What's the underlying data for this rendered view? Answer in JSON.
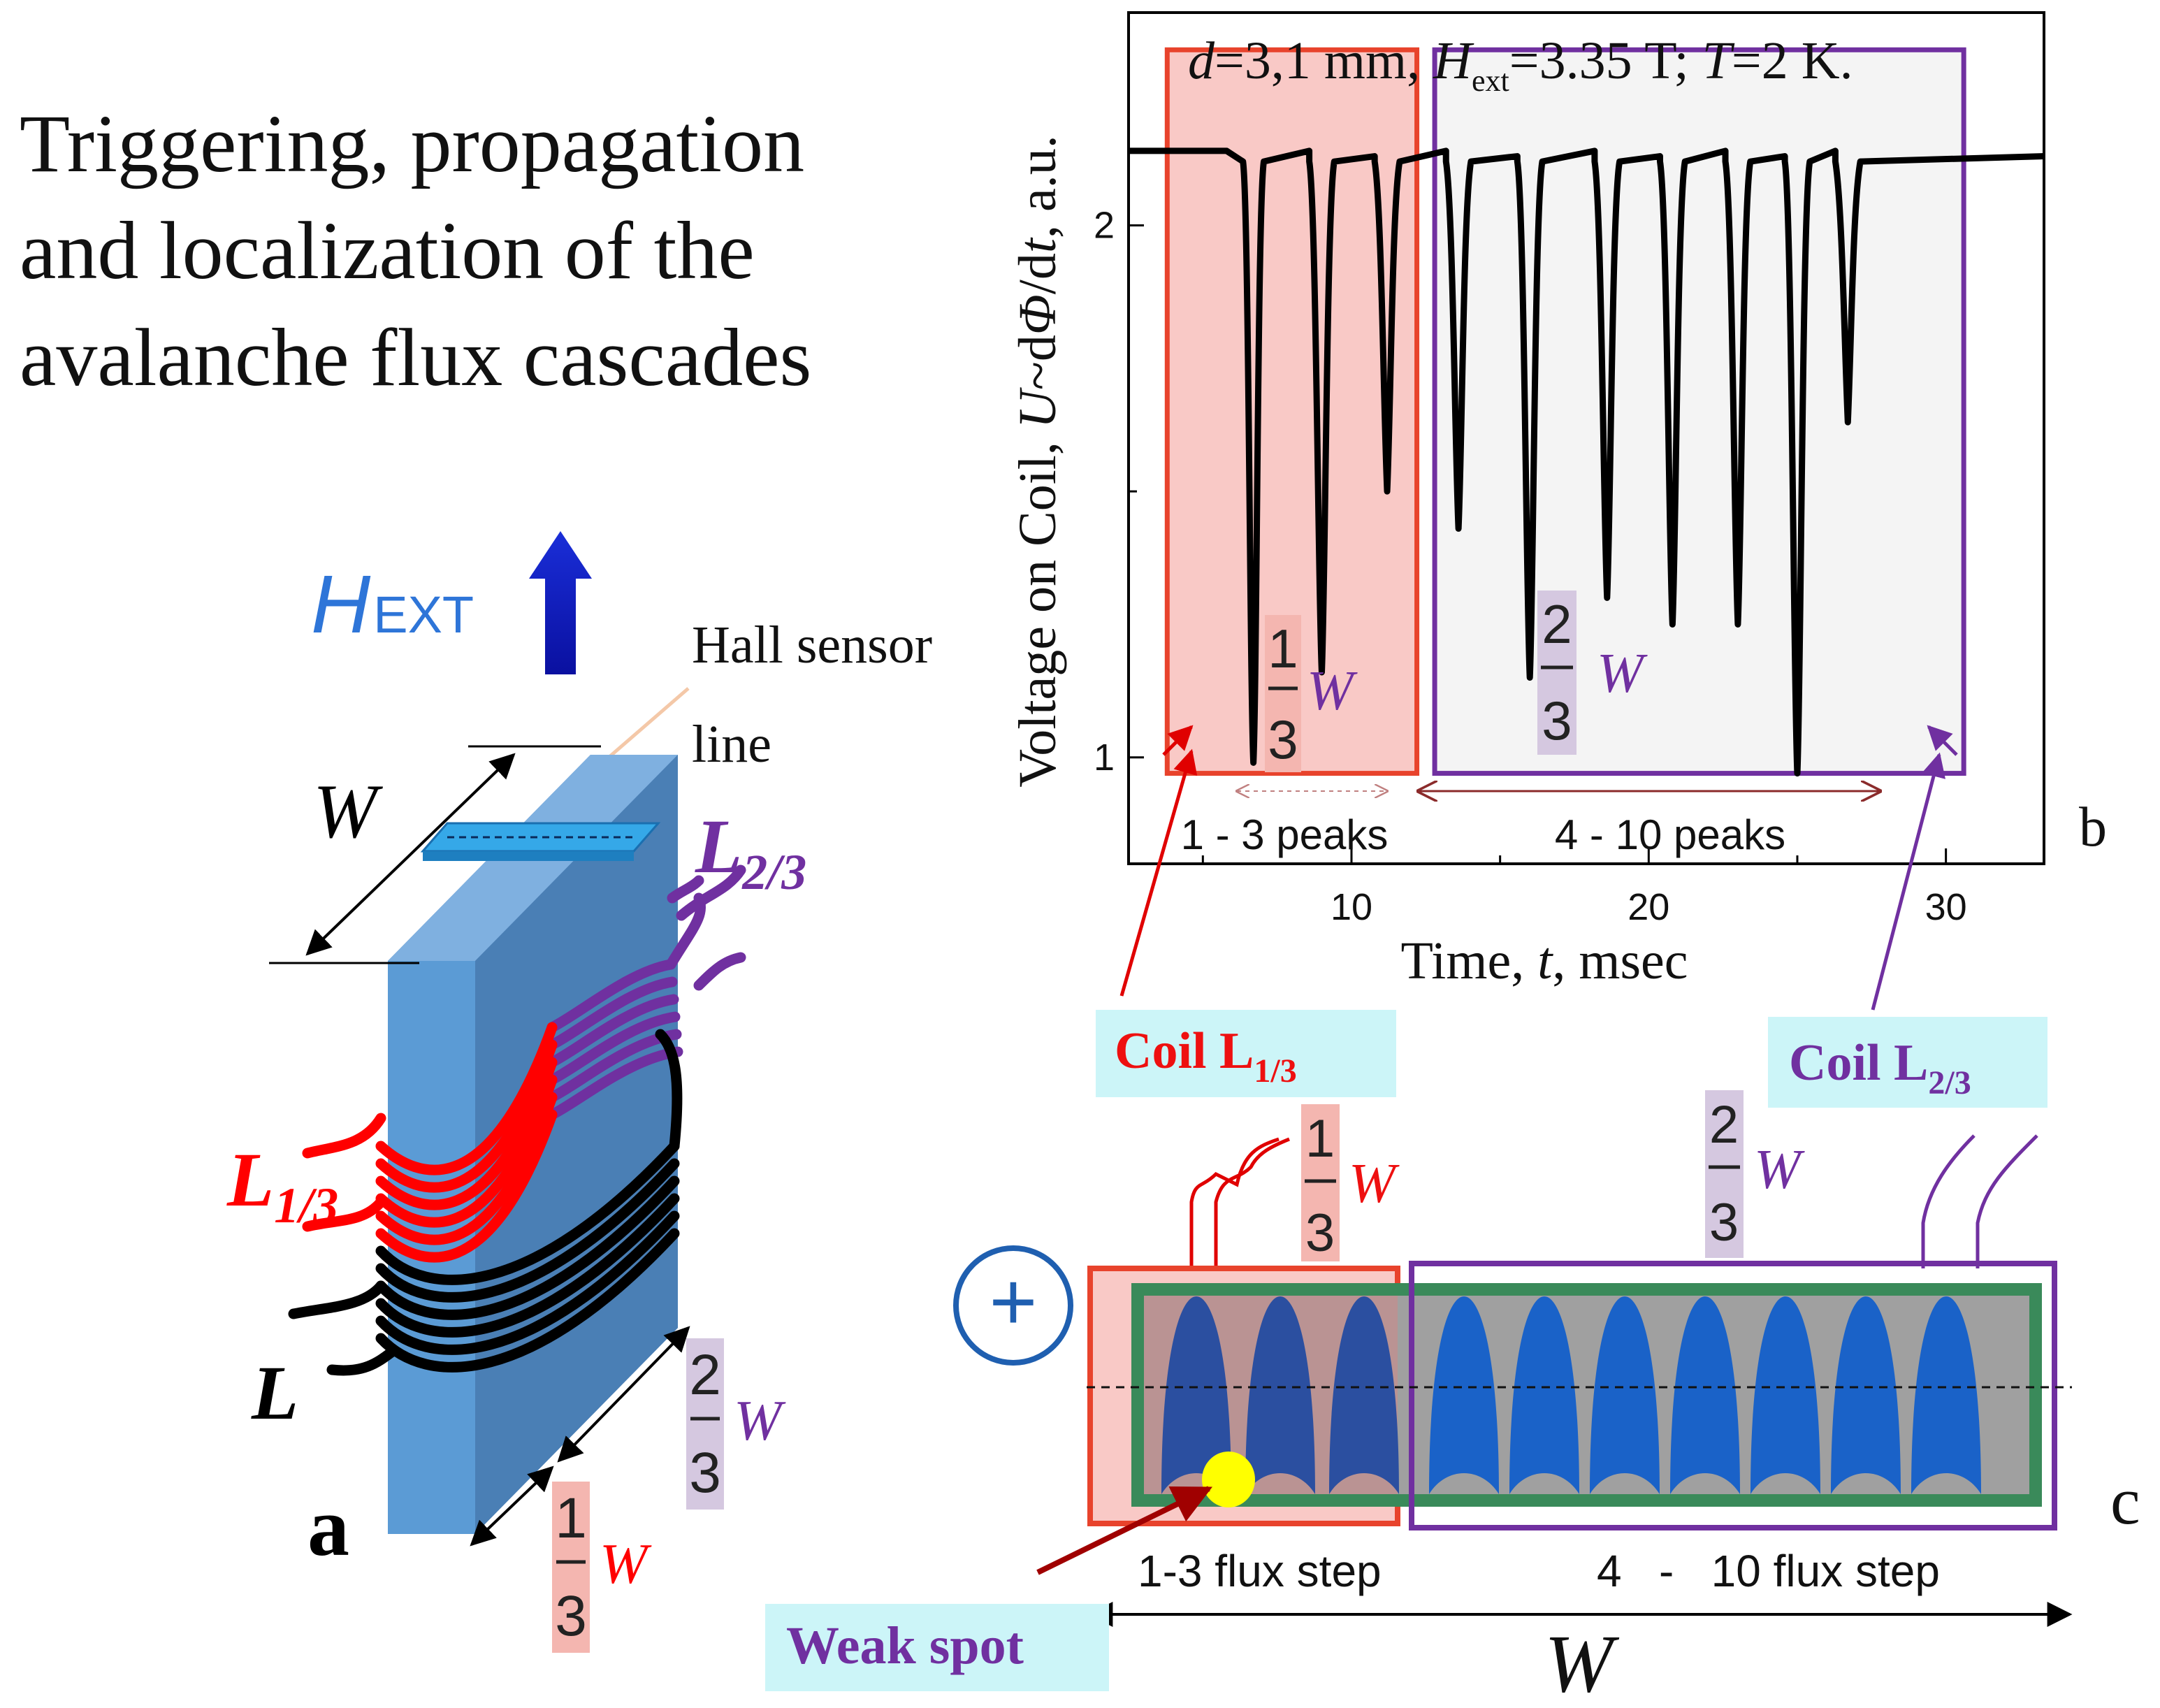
{
  "title": {
    "line1": "Triggering, propagation",
    "line2": "and localization of the",
    "line3": "avalanche flux cascades"
  },
  "panel_a": {
    "label": "a",
    "field_H": "H",
    "field_sub": "EXT",
    "hall_line1": "Hall sensor",
    "hall_line2": "line",
    "width_label": "W",
    "coil_l23": "L",
    "coil_l23_sub": "2/3",
    "coil_l13": "L",
    "coil_l13_sub": "1/3",
    "coil_l": "L",
    "frac_two_thirds_num": "2",
    "frac_two_thirds_den": "3",
    "frac_one_third_num": "1",
    "frac_one_third_den": "3",
    "frac_w": "W"
  },
  "chart_data": {
    "type": "line",
    "title": "d=3,1 mm, H_ext=3.35 T; T=2 K.",
    "title_parts": {
      "d": "d",
      "d_val": "=3,1 mm, ",
      "h": "H",
      "h_sub": "ext",
      "h_val": "=3.35 T; ",
      "t": "T",
      "t_val": "=2 K."
    },
    "xlabel": "Time, t, msec",
    "xlabel_parts": {
      "a": "Time, ",
      "t": "t",
      "b": ", msec"
    },
    "ylabel": "Voltage on Coil, U~dΦ/dt, a.u.",
    "ylabel_parts": {
      "a": "Voltage on Coil, ",
      "u": "U",
      "b": "~d",
      "phi": "Φ",
      "c": "/d",
      "t": "t",
      "d": ", a.u."
    },
    "xlim": [
      2.5,
      33.3
    ],
    "ylim": [
      0.8,
      2.4
    ],
    "xticks": [
      10,
      20,
      30
    ],
    "yticks": [
      1,
      2
    ],
    "yticks_minor": [
      1.5
    ],
    "baseline": 2.14,
    "series": [
      {
        "name": "coil voltage",
        "peaks": [
          {
            "t": 6.7,
            "v": 0.99,
            "group": "1/3"
          },
          {
            "t": 9.0,
            "v": 1.16,
            "group": "1/3"
          },
          {
            "t": 11.2,
            "v": 1.5,
            "group": "1/3"
          },
          {
            "t": 13.6,
            "v": 1.43,
            "group": "2/3"
          },
          {
            "t": 16.0,
            "v": 1.15,
            "group": "2/3"
          },
          {
            "t": 18.6,
            "v": 1.3,
            "group": "2/3"
          },
          {
            "t": 20.8,
            "v": 1.25,
            "group": "2/3"
          },
          {
            "t": 23.0,
            "v": 1.25,
            "group": "2/3"
          },
          {
            "t": 25.0,
            "v": 0.97,
            "group": "2/3"
          },
          {
            "t": 26.7,
            "v": 1.63,
            "group": "2/3"
          }
        ]
      }
    ],
    "regions": [
      {
        "name": "L1/3 window",
        "t_start": 3.8,
        "t_end": 12.2,
        "color": "#e8432c"
      },
      {
        "name": "L2/3 window",
        "t_start": 12.8,
        "t_end": 30.6,
        "color": "#7030a0"
      }
    ],
    "annotations": {
      "peaks_13": "1 - 3 peaks",
      "peaks_410": "4 - 10 peaks",
      "frac1_num": "1",
      "frac1_den": "3",
      "frac2_num": "2",
      "frac2_den": "3",
      "frac_w": "W",
      "panel_label": "b"
    }
  },
  "panel_c": {
    "label": "c",
    "coil13_text": "Coil L",
    "coil13_sub": "1/3",
    "coil23_text": "Coil L",
    "coil23_sub": "2/3",
    "frac1_num": "1",
    "frac1_den": "3",
    "frac2_num": "2",
    "frac2_den": "3",
    "frac_w": "W",
    "plus_symbol": "+",
    "step_13": "1-3 flux step",
    "step_410": "4   -   10 flux step",
    "weak_spot": "Weak spot",
    "width_label": "W",
    "flux_tongues_count": 10
  },
  "colors": {
    "red": "#ff0000",
    "purple": "#7030a0",
    "dark_red": "#c0000f",
    "blue_field": "#2e75d8",
    "slab": "#5b9bd5",
    "slab_side": "#4a7fb5",
    "cyan_box": "#ccf5f8",
    "pink_box": "#f4b6b0",
    "lilac_box": "#d5c8e0"
  }
}
